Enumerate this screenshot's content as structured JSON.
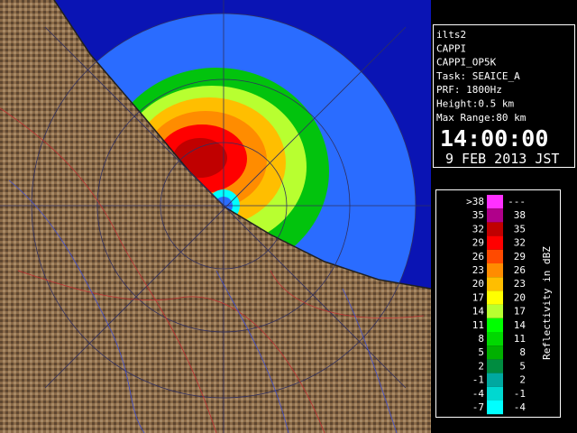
{
  "info": {
    "lines": [
      "ilts2",
      "CAPPI",
      "CAPPI_OP5K",
      "Task: SEAICE_A",
      "PRF: 1800Hz",
      "Height:0.5 km",
      "Max Range:80 km"
    ],
    "time": "14:00:00",
    "date": "9 FEB 2013 JST"
  },
  "legend": {
    "title": "Reflectivity in dBZ",
    "rows": [
      {
        "low": ">38",
        "high": "---",
        "color": "#ff30ff"
      },
      {
        "low": "35",
        "high": "38",
        "color": "#b0008a"
      },
      {
        "low": "32",
        "high": "35",
        "color": "#c00000"
      },
      {
        "low": "29",
        "high": "32",
        "color": "#ff0000"
      },
      {
        "low": "26",
        "high": "29",
        "color": "#ff4a00"
      },
      {
        "low": "23",
        "high": "26",
        "color": "#ff8c00"
      },
      {
        "low": "20",
        "high": "23",
        "color": "#ffbe00"
      },
      {
        "low": "17",
        "high": "20",
        "color": "#ffff00"
      },
      {
        "low": "14",
        "high": "17",
        "color": "#b8ff30"
      },
      {
        "low": "11",
        "high": "14",
        "color": "#00ff00"
      },
      {
        "low": "8",
        "high": "11",
        "color": "#00d800"
      },
      {
        "low": "5",
        "high": "8",
        "color": "#00b000"
      },
      {
        "low": "2",
        "high": "5",
        "color": "#008c40"
      },
      {
        "low": "-1",
        "high": "2",
        "color": "#00a8a0"
      },
      {
        "low": "-4",
        "high": "-1",
        "color": "#00d8d0"
      },
      {
        "low": "-7",
        "high": "-4",
        "color": "#00ffff"
      }
    ]
  }
}
